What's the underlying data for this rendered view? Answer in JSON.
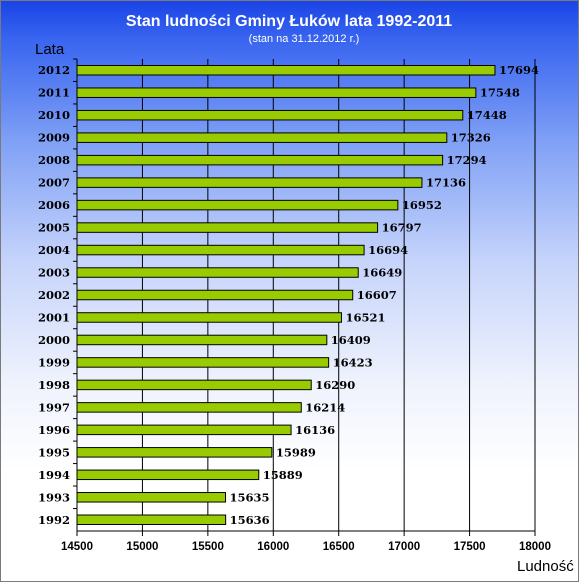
{
  "chart_data": {
    "type": "bar",
    "orientation": "horizontal",
    "title": "Stan ludności Gminy Łuków lata 1992-2011",
    "subtitle": "(stan na 31.12.2012 r.)",
    "ylabel": "Lata",
    "xlabel": "Ludność",
    "categories": [
      "2012",
      "2011",
      "2010",
      "2009",
      "2008",
      "2007",
      "2006",
      "2005",
      "2004",
      "2003",
      "2002",
      "2001",
      "2000",
      "1999",
      "1998",
      "1997",
      "1996",
      "1995",
      "1994",
      "1993",
      "1992"
    ],
    "values": [
      17694,
      17548,
      17448,
      17326,
      17294,
      17136,
      16952,
      16797,
      16694,
      16649,
      16607,
      16521,
      16409,
      16423,
      16290,
      16214,
      16136,
      15989,
      15889,
      15635,
      15636
    ],
    "value_labels": [
      "17694",
      "17548",
      "17448",
      "17326",
      "17294",
      "17136",
      "16952",
      "16797",
      "16694",
      "16649",
      "16607",
      "16521",
      "16409",
      "16423",
      "16290",
      "16214",
      "16136",
      "15989",
      "15889",
      "15635",
      "15636"
    ],
    "xlim": [
      14500,
      18000
    ],
    "x_ticks": [
      "14500",
      "15000",
      "15500",
      "16000",
      "16500",
      "17000",
      "17500",
      "18000"
    ],
    "grid": "vertical",
    "bar_color": "#99cc00",
    "bar_edge_color": "#000000",
    "background_gradient": [
      "#1a44e6",
      "#ffffff"
    ]
  }
}
